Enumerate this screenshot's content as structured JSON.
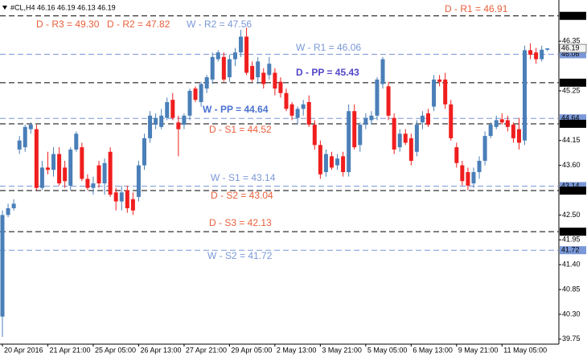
{
  "chart_data": {
    "type": "candlestick",
    "title": "#CL,H4 46.16 46.19 46.13 46.19",
    "up_color": "#4a7fb8",
    "down_color": "#f01e1e",
    "ylim": [
      39.64,
      47.19
    ],
    "yticks": [
      {
        "value": 39.75,
        "label": "39.75"
      },
      {
        "value": 40.3,
        "label": "40.30"
      },
      {
        "value": 40.85,
        "label": "40.85"
      },
      {
        "value": 41.4,
        "label": "41.40"
      },
      {
        "value": 41.95,
        "label": "41.95"
      },
      {
        "value": 42.5,
        "label": "42.50"
      },
      {
        "value": 43.6,
        "label": "43.60"
      },
      44.15,
      45.25,
      46.35
    ],
    "categories": [
      "20 Apr 2016",
      null,
      null,
      null,
      null,
      null,
      null,
      null,
      "21 Apr 21:00",
      null,
      null,
      null,
      null,
      null,
      null,
      null,
      "25 Apr 05:00",
      null,
      null,
      null,
      null,
      null,
      null,
      null,
      "26 Apr 13:00",
      null,
      null,
      null,
      null,
      null,
      null,
      null,
      "27 Apr 21:00",
      null,
      null,
      null,
      null,
      null,
      null,
      null,
      "29 Apr 05:00",
      null,
      null,
      null,
      null,
      null,
      null,
      null,
      "2 May 13:00",
      null,
      null,
      null,
      null,
      null,
      null,
      null,
      "3 May 21:00",
      null,
      null,
      null,
      null,
      null,
      null,
      null,
      "5 May 05:00",
      null,
      null,
      null,
      null,
      null,
      null,
      null,
      "6 May 13:00",
      null,
      null,
      null,
      null,
      null,
      null,
      null,
      "9 May 21:00",
      null,
      null,
      null,
      null,
      null,
      null,
      null,
      "11 May 05:00",
      null,
      null,
      null,
      null,
      null,
      null,
      null,
      null
    ],
    "ohlc": [
      [
        40.25,
        42.6,
        39.8,
        42.5
      ],
      [
        42.5,
        42.75,
        42.45,
        42.65
      ],
      [
        42.65,
        42.85,
        42.6,
        42.75
      ],
      [
        43.95,
        44.25,
        43.85,
        44.15
      ],
      [
        44.0,
        44.5,
        43.9,
        44.45
      ],
      [
        44.4,
        44.55,
        44.3,
        44.5
      ],
      [
        44.4,
        44.5,
        43.05,
        43.1
      ],
      [
        43.1,
        43.7,
        43.05,
        43.55
      ],
      [
        43.55,
        43.9,
        43.4,
        43.5
      ],
      [
        43.5,
        44.0,
        43.35,
        43.85
      ],
      [
        43.85,
        44.0,
        43.15,
        43.2
      ],
      [
        43.55,
        43.7,
        43.1,
        43.25
      ],
      [
        43.15,
        44.0,
        43.05,
        43.95
      ],
      [
        43.95,
        44.35,
        43.9,
        44.3
      ],
      [
        44.0,
        44.1,
        43.25,
        43.3
      ],
      [
        43.3,
        43.4,
        43.05,
        43.1
      ],
      [
        43.1,
        43.35,
        42.95,
        43.2
      ],
      [
        43.6,
        43.7,
        43.1,
        43.2
      ],
      [
        43.2,
        43.75,
        42.95,
        43.65
      ],
      [
        43.9,
        44.0,
        42.9,
        42.95
      ],
      [
        43.0,
        43.1,
        42.6,
        42.8
      ],
      [
        42.8,
        43.15,
        42.6,
        43.0
      ],
      [
        43.05,
        43.15,
        42.55,
        42.65
      ],
      [
        42.85,
        43.0,
        42.5,
        42.6
      ],
      [
        42.9,
        43.7,
        42.8,
        43.6
      ],
      [
        43.6,
        44.3,
        43.5,
        44.2
      ],
      [
        44.2,
        44.8,
        44.1,
        44.7
      ],
      [
        44.5,
        44.75,
        44.4,
        44.65
      ],
      [
        44.45,
        44.85,
        44.4,
        44.7
      ],
      [
        44.65,
        45.1,
        44.6,
        45.0
      ],
      [
        45.05,
        45.2,
        44.6,
        44.65
      ],
      [
        44.55,
        44.7,
        43.8,
        44.4
      ],
      [
        44.5,
        44.75,
        44.4,
        44.7
      ],
      [
        44.7,
        45.3,
        44.6,
        45.25
      ],
      [
        45.3,
        45.35,
        45.0,
        45.05
      ],
      [
        45.0,
        45.45,
        44.9,
        45.4
      ],
      [
        45.3,
        45.6,
        45.2,
        45.55
      ],
      [
        45.5,
        46.1,
        45.4,
        46.0
      ],
      [
        45.95,
        46.15,
        45.9,
        46.1
      ],
      [
        46.0,
        46.1,
        45.45,
        45.5
      ],
      [
        45.55,
        46.05,
        45.45,
        45.95
      ],
      [
        45.95,
        46.2,
        45.8,
        46.1
      ],
      [
        46.1,
        46.6,
        46.0,
        46.45
      ],
      [
        46.45,
        46.65,
        45.6,
        45.65
      ],
      [
        45.8,
        45.9,
        45.45,
        45.5
      ],
      [
        45.55,
        46.0,
        45.4,
        45.9
      ],
      [
        45.65,
        45.75,
        45.3,
        45.4
      ],
      [
        45.6,
        46.0,
        45.5,
        45.85
      ],
      [
        45.65,
        45.75,
        45.15,
        45.3
      ],
      [
        45.45,
        45.55,
        45.1,
        45.2
      ],
      [
        45.2,
        45.3,
        44.8,
        44.85
      ],
      [
        44.95,
        45.0,
        44.6,
        44.7
      ],
      [
        44.65,
        44.9,
        44.5,
        44.85
      ],
      [
        44.85,
        45.05,
        44.7,
        44.95
      ],
      [
        45.0,
        45.15,
        44.45,
        44.5
      ],
      [
        44.5,
        44.6,
        43.95,
        44.05
      ],
      [
        44.05,
        44.15,
        43.3,
        43.4
      ],
      [
        43.45,
        43.95,
        43.35,
        43.85
      ],
      [
        43.8,
        43.9,
        43.5,
        43.55
      ],
      [
        43.6,
        43.85,
        43.5,
        43.75
      ],
      [
        43.8,
        43.9,
        43.35,
        43.45
      ],
      [
        43.45,
        44.95,
        43.35,
        44.8
      ],
      [
        44.8,
        44.95,
        43.95,
        44.0
      ],
      [
        44.05,
        44.55,
        43.9,
        44.5
      ],
      [
        44.5,
        44.75,
        44.4,
        44.65
      ],
      [
        44.6,
        44.8,
        44.5,
        44.7
      ],
      [
        44.7,
        45.55,
        44.6,
        45.5
      ],
      [
        45.4,
        46.0,
        45.3,
        45.95
      ],
      [
        45.35,
        45.45,
        44.6,
        44.7
      ],
      [
        44.65,
        44.75,
        43.85,
        43.95
      ],
      [
        44.0,
        44.4,
        43.9,
        44.3
      ],
      [
        44.3,
        44.4,
        44.05,
        44.1
      ],
      [
        44.2,
        44.3,
        43.6,
        43.7
      ],
      [
        43.9,
        44.6,
        43.8,
        44.5
      ],
      [
        44.55,
        44.8,
        44.4,
        44.7
      ],
      [
        44.75,
        44.85,
        44.45,
        44.5
      ],
      [
        44.9,
        45.6,
        44.8,
        45.5
      ],
      [
        45.5,
        45.6,
        45.35,
        45.45
      ],
      [
        45.5,
        45.65,
        44.85,
        44.95
      ],
      [
        44.95,
        45.05,
        44.15,
        44.2
      ],
      [
        44.0,
        44.1,
        43.55,
        43.65
      ],
      [
        43.6,
        43.7,
        43.15,
        43.25
      ],
      [
        43.45,
        43.55,
        43.05,
        43.15
      ],
      [
        43.2,
        43.55,
        43.1,
        43.45
      ],
      [
        43.45,
        43.8,
        43.3,
        43.7
      ],
      [
        43.7,
        44.35,
        43.6,
        44.25
      ],
      [
        44.25,
        44.55,
        44.2,
        44.5
      ],
      [
        44.45,
        44.7,
        44.4,
        44.6
      ],
      [
        44.62,
        44.75,
        44.5,
        44.55
      ],
      [
        44.6,
        44.7,
        44.35,
        44.45
      ],
      [
        44.5,
        44.55,
        44.1,
        44.2
      ],
      [
        44.4,
        44.65,
        43.95,
        44.1
      ],
      [
        44.15,
        46.25,
        44.05,
        46.15
      ],
      [
        46.15,
        46.3,
        45.95,
        46.05
      ],
      [
        46.1,
        46.2,
        45.85,
        45.95
      ],
      [
        45.95,
        46.25,
        45.9,
        46.16
      ],
      [
        46.16,
        46.19,
        46.13,
        46.19
      ]
    ],
    "last": 46.19,
    "levels": [
      {
        "label": "D - R3 = 49.30",
        "value": 49.3,
        "color": "#e8603c",
        "line_color": "#000000"
      },
      {
        "label": "D - R2 = 47.82",
        "value": 47.82,
        "color": "#e8603c",
        "line_color": "#000000"
      },
      {
        "label": "W - R2 = 47.56",
        "value": 47.56,
        "color": "#7a98d8",
        "line_color": "#7a98d8"
      },
      {
        "label": "D - R1 = 46.91",
        "value": 46.91,
        "color": "#e8603c",
        "line_color": "#000000"
      },
      {
        "label": "W - R1 = 46.06",
        "value": 46.06,
        "color": "#7a98d8",
        "line_color": "#7a98d8"
      },
      {
        "label": "D - PP = 45.43",
        "value": 45.43,
        "color": "#5346c8",
        "line_color": "#000000",
        "bold": true
      },
      {
        "label": "W - PP = 44.64",
        "value": 44.64,
        "color": "#4a72d0",
        "line_color": "#7a98d8",
        "bold": true
      },
      {
        "label": "D - S1 = 44.52",
        "value": 44.52,
        "color": "#e8603c",
        "line_color": "#000000"
      },
      {
        "label": "W - S1 = 43.14",
        "value": 43.14,
        "color": "#7a98d8",
        "line_color": "#7a98d8"
      },
      {
        "label": "D - S2 = 43.04",
        "value": 43.04,
        "color": "#e8603c",
        "line_color": "#000000"
      },
      {
        "label": "D - S3 = 42.13",
        "value": 42.13,
        "color": "#e8603c",
        "line_color": "#000000"
      },
      {
        "label": "W - S2 = 41.72",
        "value": 41.72,
        "color": "#7a98d8",
        "line_color": "#7a98d8"
      }
    ]
  }
}
